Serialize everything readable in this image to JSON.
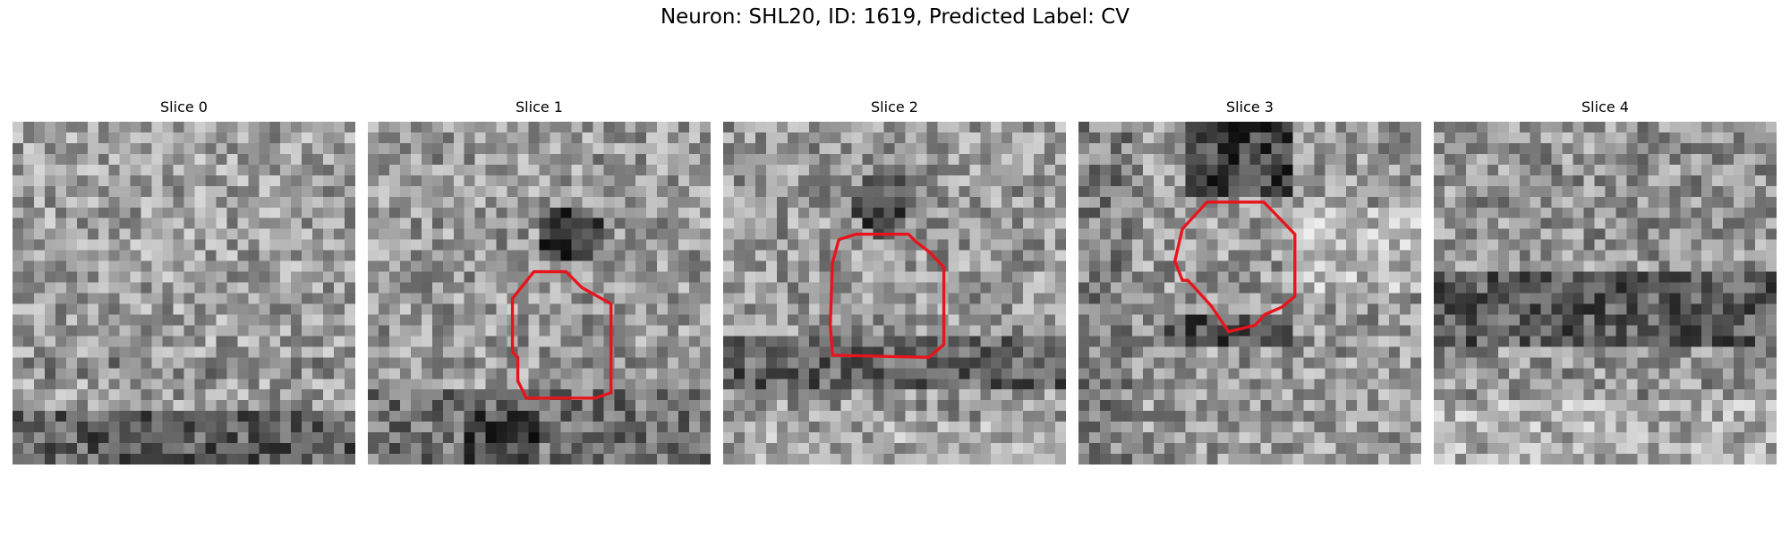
{
  "figure": {
    "title": "Neuron: SHL20, ID: 1619, Predicted Label: CV"
  },
  "slices": [
    {
      "label": "Slice 0",
      "has_outline": false
    },
    {
      "label": "Slice 1",
      "has_outline": true
    },
    {
      "label": "Slice 2",
      "has_outline": true
    },
    {
      "label": "Slice 3",
      "has_outline": true
    },
    {
      "label": "Slice 4",
      "has_outline": false
    }
  ],
  "colors": {
    "outline": "#e8141c",
    "background": "#ffffff"
  },
  "image": {
    "colormap": "grayscale",
    "grid_cells": 32
  }
}
